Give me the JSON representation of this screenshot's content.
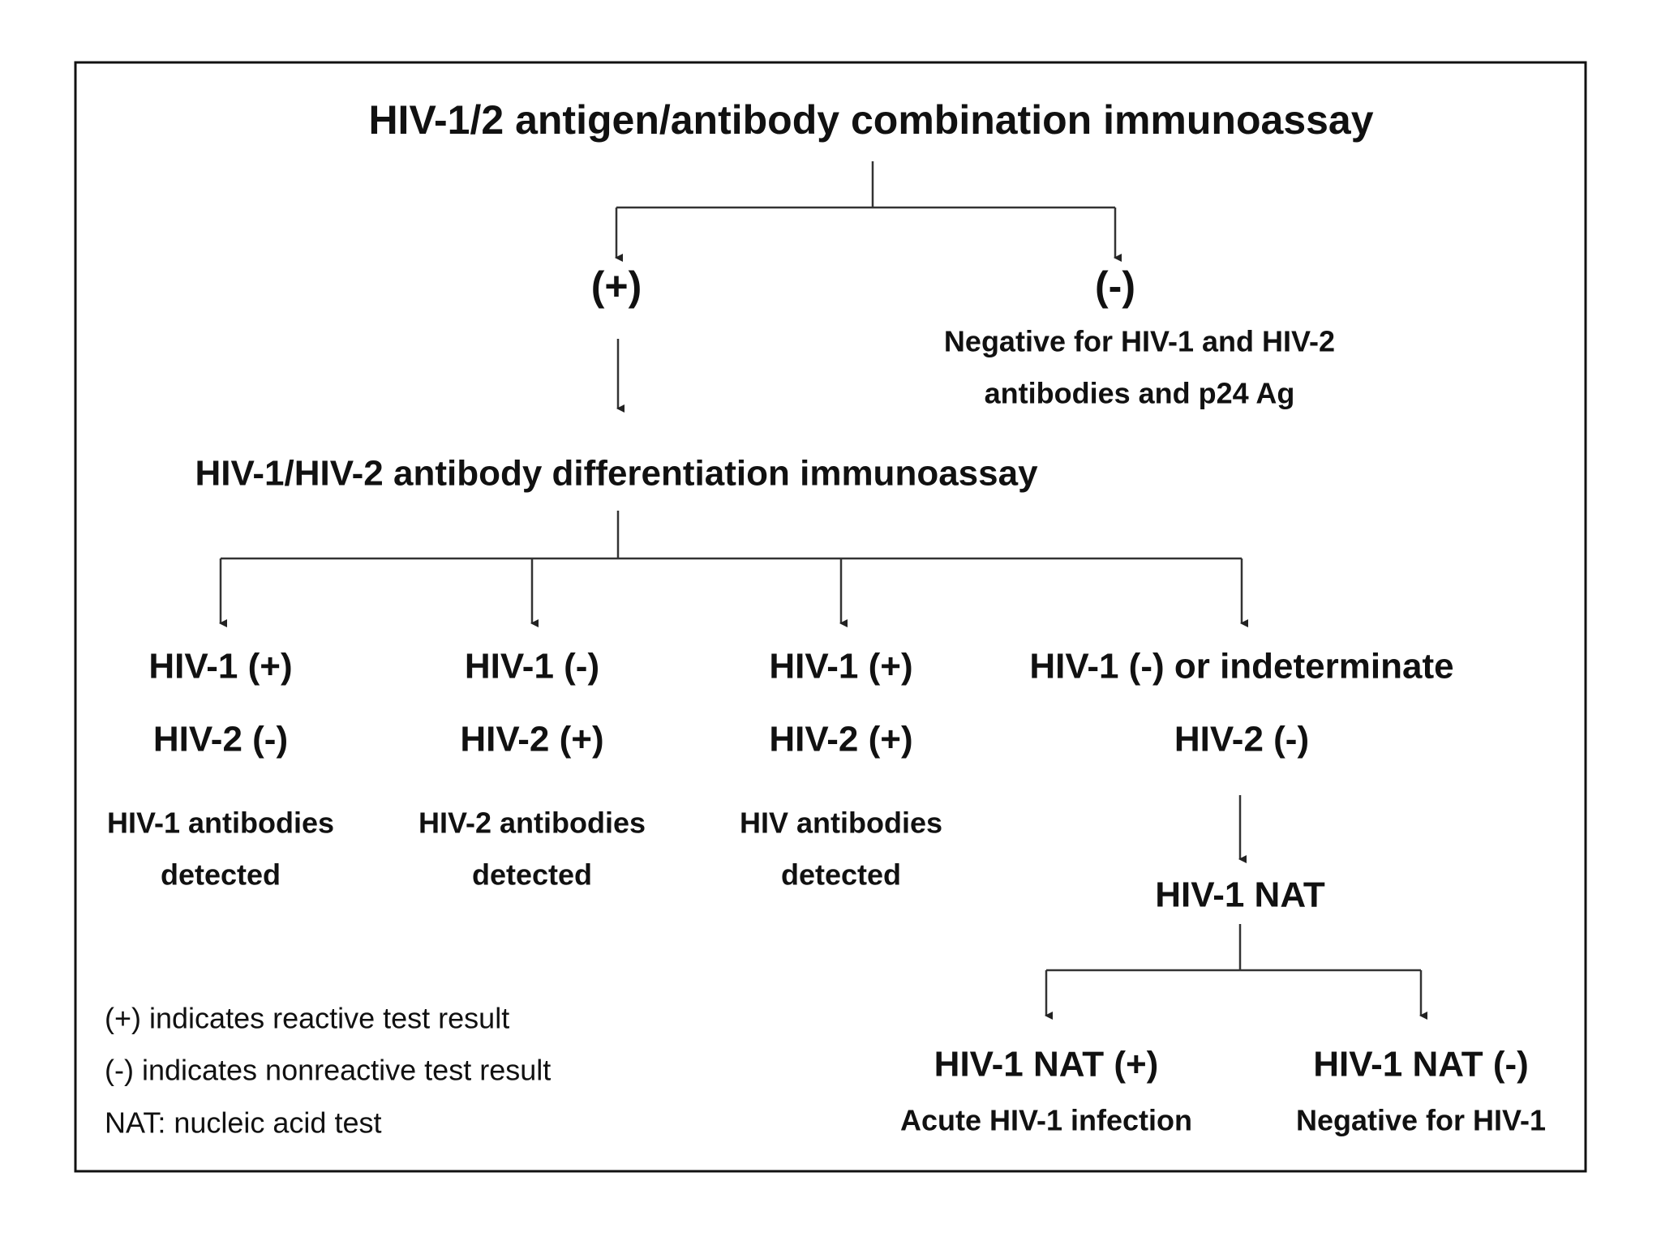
{
  "title": "HIV-1/2 antigen/antibody combination immunoassay",
  "first_results": {
    "positive": "(+)",
    "negative": "(-)",
    "negative_lines": [
      "Negative for HIV-1 and HIV-2",
      "antibodies and p24 Ag"
    ]
  },
  "second_test": "HIV-1/HIV-2 antibody differentiation immunoassay",
  "outcomes": [
    {
      "hiv1": "HIV-1 (+)",
      "hiv2": "HIV-2 (-)",
      "lines": [
        "HIV-1 antibodies",
        "detected"
      ]
    },
    {
      "hiv1": "HIV-1 (-)",
      "hiv2": "HIV-2 (+)",
      "lines": [
        "HIV-2 antibodies",
        "detected"
      ]
    },
    {
      "hiv1": "HIV-1 (+)",
      "hiv2": "HIV-2 (+)",
      "lines": [
        "HIV antibodies",
        "detected"
      ]
    },
    {
      "hiv1": "HIV-1 (-) or indeterminate",
      "hiv2": "HIV-2 (-)"
    }
  ],
  "nat": "HIV-1 NAT",
  "nat_results": [
    {
      "label": "HIV-1 NAT (+)",
      "meaning": "Acute HIV-1 infection"
    },
    {
      "label": "HIV-1 NAT (-)",
      "meaning": "Negative for HIV-1"
    }
  ],
  "legend": [
    "(+) indicates reactive test result",
    "(-) indicates nonreactive test result",
    "NAT: nucleic acid test"
  ]
}
